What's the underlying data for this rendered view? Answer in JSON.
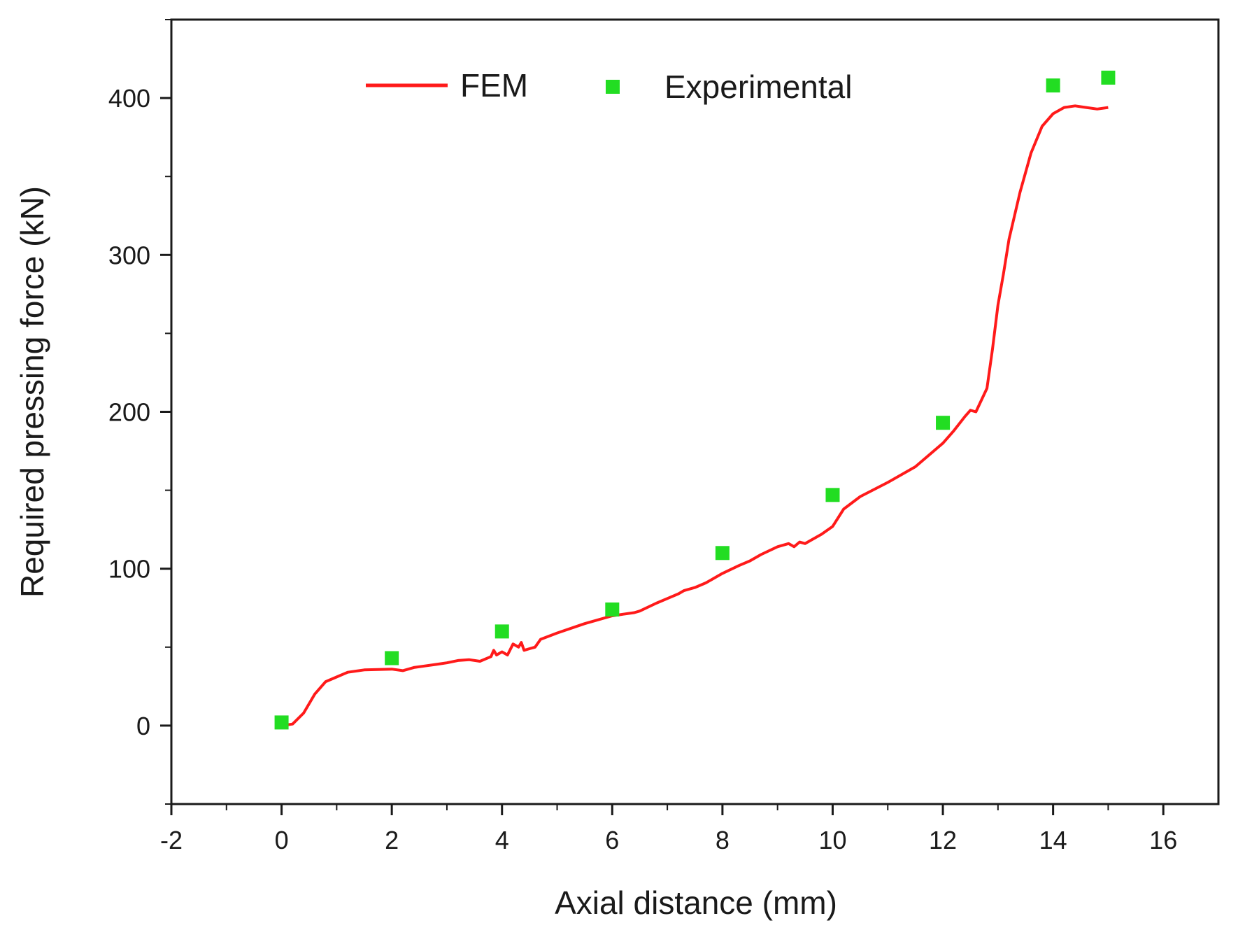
{
  "chart_data": {
    "type": "line",
    "title": "",
    "xlabel": "Axial distance (mm)",
    "ylabel": "Required pressing force (kN)",
    "xlim": [
      -2,
      17
    ],
    "ylim": [
      -50,
      450
    ],
    "xticks": [
      -2,
      0,
      2,
      4,
      6,
      8,
      10,
      12,
      14,
      16
    ],
    "yticks": [
      0,
      100,
      200,
      300,
      400
    ],
    "xtick_labels": [
      "-2",
      "0",
      "2",
      "4",
      "6",
      "8",
      "10",
      "12",
      "14",
      "16"
    ],
    "ytick_labels": [
      "0",
      "100",
      "200",
      "300",
      "400"
    ],
    "grid": false,
    "legend_position": "top",
    "series": [
      {
        "name": "FEM",
        "type": "line",
        "color": "#ff1a1a",
        "x": [
          0,
          0.2,
          0.4,
          0.6,
          0.8,
          1.0,
          1.2,
          1.5,
          2.0,
          2.2,
          2.4,
          2.6,
          2.8,
          3.0,
          3.2,
          3.4,
          3.6,
          3.8,
          3.85,
          3.9,
          4.0,
          4.1,
          4.2,
          4.3,
          4.35,
          4.4,
          4.5,
          4.6,
          4.7,
          5.0,
          5.5,
          6.0,
          6.2,
          6.4,
          6.5,
          6.8,
          7.0,
          7.2,
          7.3,
          7.5,
          7.7,
          8.0,
          8.3,
          8.5,
          8.7,
          9.0,
          9.2,
          9.3,
          9.4,
          9.5,
          9.6,
          9.8,
          10.0,
          10.2,
          10.5,
          11.0,
          11.5,
          12.0,
          12.2,
          12.4,
          12.5,
          12.6,
          12.8,
          12.9,
          13.0,
          13.1,
          13.2,
          13.4,
          13.6,
          13.8,
          14.0,
          14.2,
          14.4,
          14.6,
          14.8,
          15.0
        ],
        "y": [
          0,
          1,
          8,
          20,
          28,
          31,
          34,
          35.5,
          36,
          35,
          37,
          38,
          39,
          40,
          41.5,
          42,
          41,
          44,
          48,
          45,
          47,
          45,
          52,
          50,
          53,
          48,
          49,
          50,
          55,
          59,
          65,
          70,
          71,
          72,
          73,
          78,
          81,
          84,
          86,
          88,
          91,
          97,
          102,
          105,
          109,
          114,
          116,
          114,
          117,
          116,
          118,
          122,
          127,
          138,
          146,
          155,
          165,
          180,
          188,
          197,
          201,
          200,
          215,
          240,
          268,
          288,
          310,
          340,
          365,
          382,
          390,
          394,
          395,
          394,
          393,
          394
        ]
      },
      {
        "name": "Experimental",
        "type": "scatter",
        "color": "#22dd22",
        "x": [
          0,
          2,
          4,
          6,
          8,
          10,
          12,
          14,
          15
        ],
        "y": [
          2,
          43,
          60,
          74,
          110,
          147,
          193,
          408,
          413
        ]
      }
    ]
  }
}
